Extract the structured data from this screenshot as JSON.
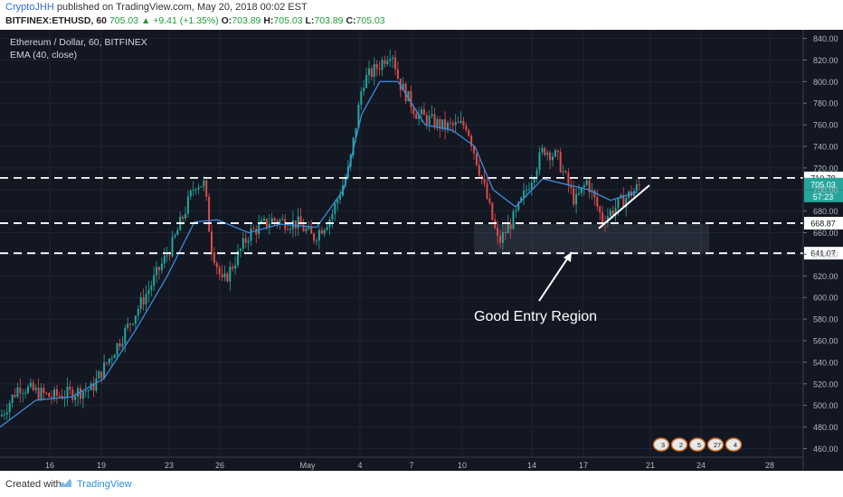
{
  "header": {
    "user": "CryptoJHH",
    "published_text": " published on TradingView.com, May 20, 2018 00:02 EST",
    "symbol": "BITFINEX:ETHUSD, 60",
    "last": "705.03",
    "change": "▲ +9.41 (+1.35%)",
    "o_label": "O:",
    "o_value": "703.89",
    "h_label": "H:",
    "h_value": "705.03",
    "l_label": "L:",
    "l_value": "703.89",
    "c_label": "C:",
    "c_value": "705.03"
  },
  "chart_data": {
    "type": "candlestick",
    "title": "Ethereum / Dollar, 60, BITFINEX",
    "indicator": "EMA (40, close)",
    "ylim": [
      452,
      848
    ],
    "yticks": [
      "840.00",
      "820.00",
      "800.00",
      "780.00",
      "760.00",
      "740.00",
      "720.00",
      "700.00",
      "680.00",
      "660.00",
      "640.00",
      "620.00",
      "600.00",
      "580.00",
      "560.00",
      "540.00",
      "520.00",
      "500.00",
      "480.00",
      "460.00"
    ],
    "xticks": [
      "16",
      "19",
      "23",
      "26",
      "May",
      "4",
      "7",
      "10",
      "14",
      "17",
      "21",
      "24",
      "28"
    ],
    "price_path": [
      [
        0,
        490
      ],
      [
        20,
        518
      ],
      [
        55,
        508
      ],
      [
        100,
        515
      ],
      [
        135,
        565
      ],
      [
        165,
        610
      ],
      [
        190,
        650
      ],
      [
        215,
        706
      ],
      [
        225,
        705
      ],
      [
        232,
        650
      ],
      [
        245,
        612
      ],
      [
        275,
        660
      ],
      [
        300,
        672
      ],
      [
        330,
        668
      ],
      [
        345,
        655
      ],
      [
        365,
        675
      ],
      [
        385,
        720
      ],
      [
        400,
        800
      ],
      [
        418,
        815
      ],
      [
        432,
        830
      ],
      [
        440,
        800
      ],
      [
        460,
        770
      ],
      [
        490,
        758
      ],
      [
        515,
        760
      ],
      [
        535,
        700
      ],
      [
        550,
        650
      ],
      [
        570,
        678
      ],
      [
        600,
        738
      ],
      [
        615,
        730
      ],
      [
        635,
        688
      ],
      [
        648,
        708
      ],
      [
        665,
        672
      ],
      [
        685,
        688
      ],
      [
        708,
        705
      ]
    ],
    "ema_path": [
      [
        0,
        480
      ],
      [
        40,
        505
      ],
      [
        80,
        508
      ],
      [
        115,
        525
      ],
      [
        150,
        570
      ],
      [
        185,
        620
      ],
      [
        215,
        670
      ],
      [
        240,
        672
      ],
      [
        275,
        660
      ],
      [
        310,
        668
      ],
      [
        350,
        665
      ],
      [
        380,
        700
      ],
      [
        400,
        770
      ],
      [
        420,
        800
      ],
      [
        440,
        800
      ],
      [
        470,
        760
      ],
      [
        500,
        755
      ],
      [
        525,
        740
      ],
      [
        545,
        700
      ],
      [
        570,
        684
      ],
      [
        600,
        710
      ],
      [
        625,
        705
      ],
      [
        650,
        700
      ],
      [
        675,
        690
      ],
      [
        705,
        698
      ]
    ],
    "levels": [
      {
        "value": 710.79,
        "label": "710.79",
        "style": "dashed"
      },
      {
        "value": 668.87,
        "label": "668.87",
        "style": "dashed"
      },
      {
        "value": 641.07,
        "label": "641.07",
        "style": "dashed"
      }
    ],
    "current_price": {
      "value": 705.03,
      "label": "705.03",
      "countdown": "57:23"
    },
    "trendline": [
      [
        662,
        664
      ],
      [
        718,
        704
      ]
    ],
    "zone": {
      "from": 641,
      "to": 668
    },
    "annotation": {
      "text": "Good Entry Region",
      "anchor": [
        632,
        642
      ]
    },
    "events": [
      "3",
      "2",
      "5",
      "27",
      "4"
    ]
  },
  "footer": {
    "created_with": "Created with",
    "brand": "TradingView"
  }
}
